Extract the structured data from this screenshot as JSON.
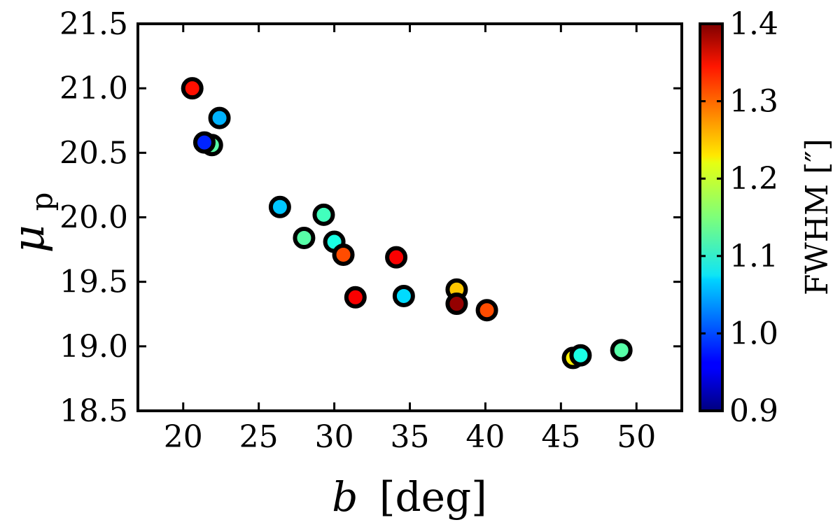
{
  "chart_data": {
    "type": "scatter",
    "xlabel": {
      "symbol": "b",
      "unit": "[deg]"
    },
    "ylabel": {
      "symbol": "μ",
      "subscript": "p"
    },
    "xlim": [
      17,
      53
    ],
    "ylim": [
      18.5,
      21.5
    ],
    "xticks": [
      20,
      25,
      30,
      35,
      40,
      45,
      50
    ],
    "yticks": [
      18.5,
      19.0,
      19.5,
      20.0,
      20.5,
      21.0,
      21.5
    ],
    "grid": false,
    "colorbar": {
      "label": "FWHM [″]",
      "range": [
        0.9,
        1.4
      ],
      "ticks": [
        0.9,
        1.0,
        1.1,
        1.2,
        1.3,
        1.4
      ],
      "colormap": "jet"
    },
    "points": [
      {
        "x": 20.6,
        "y": 21.0,
        "c": 1.33
      },
      {
        "x": 22.4,
        "y": 20.77,
        "c": 1.05
      },
      {
        "x": 21.9,
        "y": 20.56,
        "c": 1.13
      },
      {
        "x": 21.4,
        "y": 20.58,
        "c": 0.98
      },
      {
        "x": 26.4,
        "y": 20.08,
        "c": 1.06
      },
      {
        "x": 29.3,
        "y": 20.02,
        "c": 1.12
      },
      {
        "x": 28.0,
        "y": 19.84,
        "c": 1.13
      },
      {
        "x": 30.0,
        "y": 19.81,
        "c": 1.1
      },
      {
        "x": 30.6,
        "y": 19.71,
        "c": 1.3
      },
      {
        "x": 34.1,
        "y": 19.69,
        "c": 1.34
      },
      {
        "x": 31.4,
        "y": 19.38,
        "c": 1.34
      },
      {
        "x": 34.6,
        "y": 19.39,
        "c": 1.07
      },
      {
        "x": 38.1,
        "y": 19.44,
        "c": 1.24
      },
      {
        "x": 38.1,
        "y": 19.33,
        "c": 1.39
      },
      {
        "x": 40.1,
        "y": 19.28,
        "c": 1.3
      },
      {
        "x": 45.8,
        "y": 18.91,
        "c": 1.22
      },
      {
        "x": 46.3,
        "y": 18.93,
        "c": 1.1
      },
      {
        "x": 49.0,
        "y": 18.97,
        "c": 1.13
      }
    ]
  }
}
